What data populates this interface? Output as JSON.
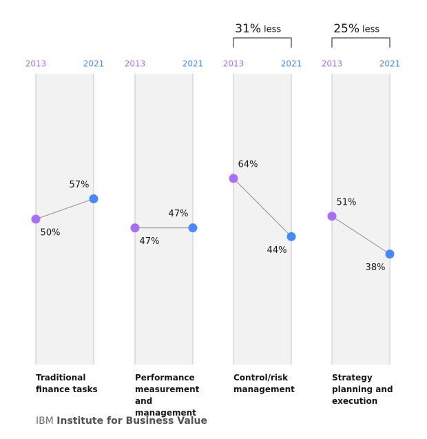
{
  "chart_data": [
    {
      "type": "slope",
      "title": "Traditional finance tasks",
      "categories": [
        "2013",
        "2021"
      ],
      "values": [
        50,
        57
      ],
      "value_labels": [
        "50%",
        "57%"
      ],
      "colors": [
        "#a56eff",
        "#4589ff"
      ],
      "ylim": [
        0,
        100
      ]
    },
    {
      "type": "slope",
      "title": "Performance measurement and management",
      "categories": [
        "2013",
        "2021"
      ],
      "values": [
        47,
        47
      ],
      "value_labels": [
        "47%",
        "47%"
      ],
      "colors": [
        "#a56eff",
        "#4589ff"
      ],
      "ylim": [
        0,
        100
      ]
    },
    {
      "type": "slope",
      "title": "Control/risk management",
      "categories": [
        "2013",
        "2021"
      ],
      "values": [
        64,
        44
      ],
      "value_labels": [
        "64%",
        "44%"
      ],
      "colors": [
        "#a56eff",
        "#4589ff"
      ],
      "ylim": [
        0,
        100
      ],
      "annotation": [
        "31%",
        "less"
      ]
    },
    {
      "type": "slope",
      "title": "Strategy planning and execution",
      "categories": [
        "2013",
        "2021"
      ],
      "values": [
        51,
        38
      ],
      "value_labels": [
        "51%",
        "38%"
      ],
      "colors": [
        "#a56eff",
        "#4589ff"
      ],
      "ylim": [
        0,
        100
      ],
      "annotation": [
        "25%",
        "less"
      ]
    }
  ],
  "footer": [
    "IBM",
    "Institute for Business Value"
  ]
}
